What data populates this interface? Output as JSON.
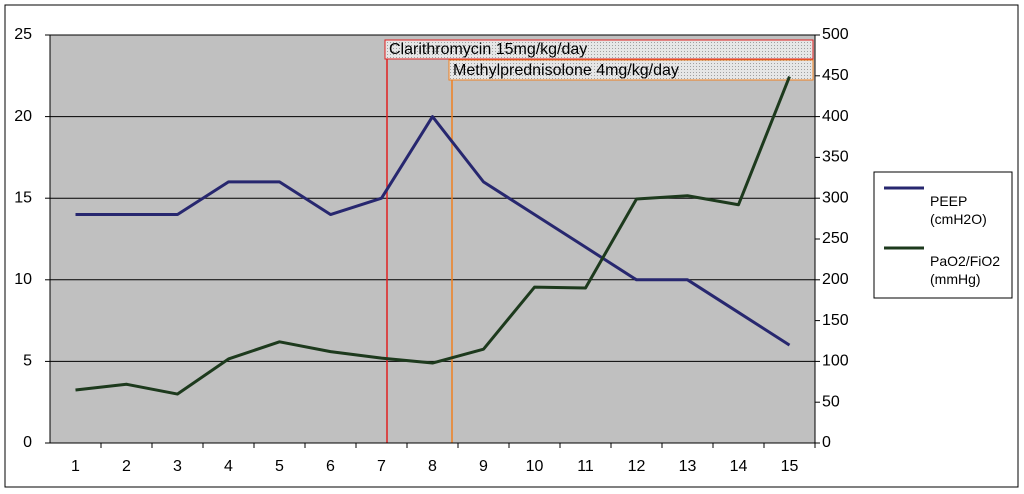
{
  "chart_data": {
    "type": "line",
    "categories": [
      "1",
      "2",
      "3",
      "4",
      "5",
      "6",
      "7",
      "8",
      "9",
      "10",
      "11",
      "12",
      "13",
      "14",
      "15"
    ],
    "series": [
      {
        "name": "PEEP (cmH2O)",
        "color": "#27276f",
        "values": [
          14,
          14,
          14,
          16,
          16,
          14,
          15,
          20,
          16,
          14,
          12,
          10,
          10,
          8,
          6
        ]
      },
      {
        "name": "PaO2/FiO2 (mmHg)",
        "color": "#1d3a1d",
        "axis": "y2",
        "values": [
          65,
          72,
          60,
          103,
          124,
          112,
          104,
          98,
          115,
          191,
          190,
          299,
          303,
          292,
          449
        ]
      }
    ],
    "ylim": [
      0,
      25
    ],
    "yticks": [
      0,
      5,
      10,
      15,
      20,
      25
    ],
    "y2lim": [
      0,
      500
    ],
    "y2ticks": [
      0,
      50,
      100,
      150,
      200,
      250,
      300,
      350,
      400,
      450,
      500
    ],
    "grid": true,
    "annotations": [
      "Clarithromycin 15mg/kg/day",
      "Methylprednisolone 4mg/kg/day"
    ]
  }
}
